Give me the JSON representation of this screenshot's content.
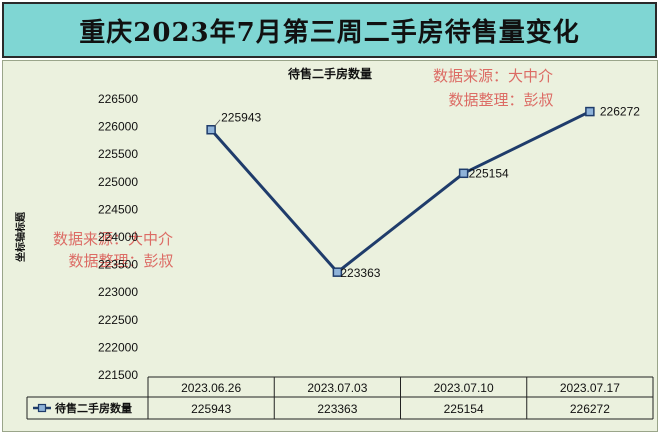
{
  "banner": {
    "title": "重庆2023年7月第三周二手房待售量变化"
  },
  "watermarks": [
    {
      "line1": "数据来源：大中介",
      "line2": "数据整理：彭叔"
    },
    {
      "line1": "数据来源：大中介",
      "line2": "数据整理：彭叔"
    }
  ],
  "chart_data": {
    "type": "line",
    "title": "待售二手房数量",
    "ylabel": "坐标轴标题",
    "ylim": [
      221500,
      226500
    ],
    "yticks": [
      221500,
      222000,
      222500,
      223000,
      223500,
      224000,
      224500,
      225000,
      225500,
      226000,
      226500
    ],
    "categories": [
      "2023.06.26",
      "2023.07.03",
      "2023.07.10",
      "2023.07.17"
    ],
    "series": [
      {
        "name": "待售二手房数量",
        "values": [
          225943,
          223363,
          225154,
          226272
        ]
      }
    ],
    "colors": {
      "line": "#1f3c6b",
      "marker_fill": "#8fb3d9",
      "marker_stroke": "#1f3c6b"
    },
    "data_table": true,
    "grid": false
  }
}
